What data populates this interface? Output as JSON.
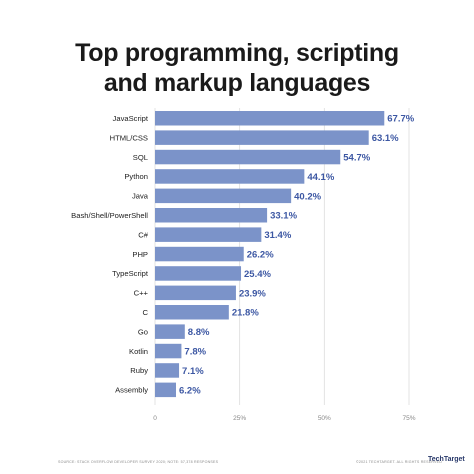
{
  "chart_data": {
    "type": "bar",
    "orientation": "horizontal",
    "title_line1": "Top programming, scripting",
    "title_line2": "and markup languages",
    "categories": [
      "JavaScript",
      "HTML/CSS",
      "SQL",
      "Python",
      "Java",
      "Bash/Shell/PowerShell",
      "C#",
      "PHP",
      "TypeScript",
      "C++",
      "C",
      "Go",
      "Kotlin",
      "Ruby",
      "Assembly"
    ],
    "values": [
      67.7,
      63.1,
      54.7,
      44.1,
      40.2,
      33.1,
      31.4,
      26.2,
      25.4,
      23.9,
      21.8,
      8.8,
      7.8,
      7.1,
      6.2
    ],
    "value_labels": [
      "67.7%",
      "63.1%",
      "54.7%",
      "44.1%",
      "40.2%",
      "33.1%",
      "31.4%",
      "26.2%",
      "25.4%",
      "23.9%",
      "21.8%",
      "8.8%",
      "7.8%",
      "7.1%",
      "6.2%"
    ],
    "xlim": [
      0,
      75
    ],
    "xticks": [
      0,
      25,
      50,
      75
    ],
    "xtick_labels": [
      "0",
      "25%",
      "50%",
      "75%"
    ],
    "grid": true,
    "bar_color": "#7b93c9",
    "label_color": "#3c57a3",
    "grid_color": "#dcdcdc"
  },
  "footer": {
    "source": "SOURCE: STACK OVERFLOW DEVELOPER SURVEY 2020; NOTE: 57,378 RESPONSES",
    "copyright": "©2021 TECHTARGET. ALL RIGHTS RESERVED",
    "logo": "TechTarget"
  }
}
